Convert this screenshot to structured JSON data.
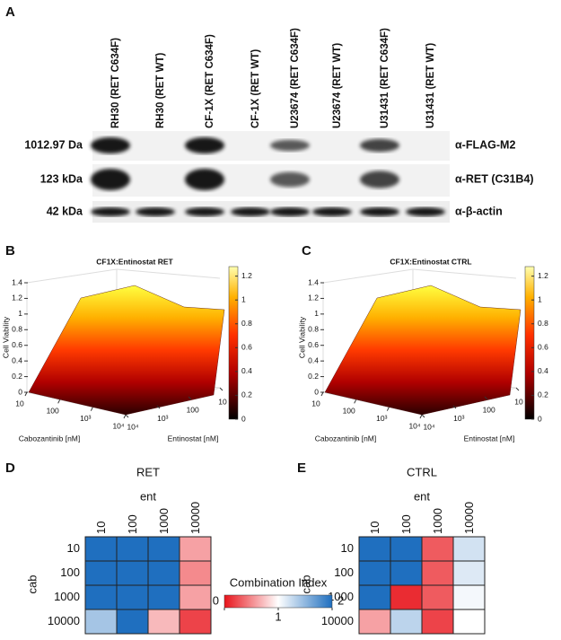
{
  "panel_a": {
    "label": "A",
    "lanes": [
      "RH30 (RET C634F)",
      "RH30 (RET WT)",
      "CF-1X (RET C634F)",
      "CF-1X (RET WT)",
      "U23674 (RET C634F)",
      "U23674 (RET WT)",
      "U31431 (RET C634F)",
      "U31431 (RET WT)"
    ],
    "rows": [
      {
        "size": "1012.97 Da",
        "antibody": "α-FLAG-M2"
      },
      {
        "size": "123 kDa",
        "antibody": "α-RET (C31B4)"
      },
      {
        "size": "42 kDa",
        "antibody": "α-β-actin"
      }
    ]
  },
  "panel_b": {
    "label": "B",
    "title": "CF1X:Entinostat RET",
    "z_label": "Cell Viability",
    "x_label": "Cabozantinib [nM]",
    "y_label": "Entinostat [nM]",
    "zlim": [
      0,
      1.4
    ],
    "zticks": [
      0,
      0.2,
      0.4,
      0.6,
      0.8,
      1,
      1.2,
      1.4
    ],
    "xlim": [
      10,
      10000
    ],
    "xticks": [
      10,
      100,
      {
        "value": 1000,
        "label": "10³"
      },
      {
        "value": 10000,
        "label": "10⁴"
      }
    ],
    "ylim": [
      10,
      10000
    ],
    "yticks": [
      10,
      100,
      {
        "value": 1000,
        "label": "10³"
      },
      {
        "value": 10000,
        "label": "10⁴"
      }
    ],
    "colorbar_lim": [
      0,
      1.28
    ],
    "colorbar_ticks": [
      0,
      0.2,
      0.4,
      0.6,
      0.8,
      1,
      1.2
    ]
  },
  "panel_c": {
    "label": "C",
    "title": "CF1X:Entinostat CTRL",
    "z_label": "Cell Viability",
    "x_label": "Cabozantinib [nM]",
    "y_label": "Entinostat [nM]",
    "zlim": [
      0,
      1.4
    ],
    "zticks": [
      0,
      0.2,
      0.4,
      0.6,
      0.8,
      1,
      1.2,
      1.4
    ],
    "xlim": [
      10,
      10000
    ],
    "xticks": [
      10,
      100,
      {
        "value": 1000,
        "label": "10³"
      },
      {
        "value": 10000,
        "label": "10⁴"
      }
    ],
    "ylim": [
      10,
      10000
    ],
    "yticks": [
      10,
      100,
      {
        "value": 1000,
        "label": "10³"
      },
      {
        "value": 10000,
        "label": "10⁴"
      }
    ],
    "colorbar_lim": [
      0,
      1.28
    ],
    "colorbar_ticks": [
      0,
      0.2,
      0.4,
      0.6,
      0.8,
      1,
      1.2
    ]
  },
  "chart_data": [
    {
      "type": "heatmap",
      "panel": "D",
      "title": "RET",
      "x_label": "ent",
      "y_label": "cab",
      "x": [
        "10",
        "100",
        "1000",
        "10000"
      ],
      "y": [
        "10",
        "100",
        "1000",
        "10000"
      ],
      "values": [
        [
          2,
          2,
          2,
          0.6
        ],
        [
          2,
          2,
          2,
          0.5
        ],
        [
          2,
          2,
          2,
          0.6
        ],
        [
          1.4,
          2,
          0.7,
          0.2
        ]
      ]
    },
    {
      "type": "heatmap",
      "panel": "E",
      "title": "CTRL",
      "x_label": "ent",
      "y_label": "cab",
      "x": [
        "10",
        "100",
        "1000",
        "10000"
      ],
      "y": [
        "10",
        "100",
        "1000",
        "10000"
      ],
      "values": [
        [
          2,
          2,
          0.3,
          1.2
        ],
        [
          2,
          2,
          0.3,
          1.15
        ],
        [
          2,
          0.1,
          0.3,
          1.05
        ],
        [
          0.6,
          1.3,
          0.2,
          1.0
        ]
      ]
    }
  ],
  "colorbar": {
    "title": "Combination Index",
    "clim": [
      0,
      2
    ],
    "ticks": [
      0,
      1,
      2
    ],
    "colors": [
      "#e8141b",
      "#ffffff",
      "#1f6fbf"
    ]
  }
}
